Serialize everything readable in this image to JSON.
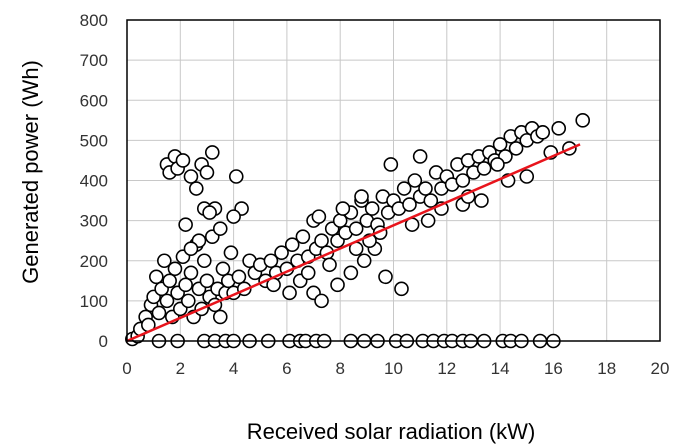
{
  "chart_data": {
    "type": "scatter",
    "xlabel": "Received solar radiation (kW)",
    "ylabel": "Generated power (Wh)",
    "xlim": [
      0,
      20
    ],
    "ylim": [
      0,
      800
    ],
    "xticks": [
      0,
      2,
      4,
      6,
      8,
      10,
      12,
      14,
      16,
      18,
      20
    ],
    "yticks": [
      0,
      100,
      200,
      300,
      400,
      500,
      600,
      700,
      800
    ],
    "grid": true,
    "legend": "none",
    "colors": {
      "points": "#000000",
      "fit_line": "#e8141c",
      "grid": "#c8c8c8"
    },
    "series": [
      {
        "values": [
          [
            0.2,
            5
          ],
          [
            0.4,
            12
          ],
          [
            0.5,
            30
          ],
          [
            0.7,
            60
          ],
          [
            0.8,
            40
          ],
          [
            0.9,
            90
          ],
          [
            1.0,
            110
          ],
          [
            1.1,
            160
          ],
          [
            1.2,
            70
          ],
          [
            1.3,
            130
          ],
          [
            1.4,
            200
          ],
          [
            1.5,
            100
          ],
          [
            1.6,
            150
          ],
          [
            1.7,
            60
          ],
          [
            1.8,
            180
          ],
          [
            1.9,
            120
          ],
          [
            2.0,
            80
          ],
          [
            2.1,
            210
          ],
          [
            2.2,
            140
          ],
          [
            2.3,
            100
          ],
          [
            2.4,
            170
          ],
          [
            2.5,
            60
          ],
          [
            2.6,
            240
          ],
          [
            2.7,
            130
          ],
          [
            2.8,
            80
          ],
          [
            2.9,
            200
          ],
          [
            3.0,
            150
          ],
          [
            3.1,
            110
          ],
          [
            3.2,
            260
          ],
          [
            3.3,
            90
          ],
          [
            3.4,
            130
          ],
          [
            3.5,
            60
          ],
          [
            3.6,
            180
          ],
          [
            3.7,
            120
          ],
          [
            3.8,
            150
          ],
          [
            3.9,
            220
          ],
          [
            4.0,
            120
          ],
          [
            4.2,
            160
          ],
          [
            4.4,
            130
          ],
          [
            4.6,
            200
          ],
          [
            1.5,
            440
          ],
          [
            1.6,
            420
          ],
          [
            1.8,
            460
          ],
          [
            1.9,
            430
          ],
          [
            2.1,
            450
          ],
          [
            2.4,
            410
          ],
          [
            2.6,
            380
          ],
          [
            2.8,
            440
          ],
          [
            3.0,
            420
          ],
          [
            3.2,
            470
          ],
          [
            2.2,
            290
          ],
          [
            2.9,
            330
          ],
          [
            3.3,
            330
          ],
          [
            3.5,
            280
          ],
          [
            4.1,
            410
          ],
          [
            4.3,
            330
          ],
          [
            4.0,
            310
          ],
          [
            3.1,
            320
          ],
          [
            2.7,
            250
          ],
          [
            2.4,
            230
          ],
          [
            4.8,
            170
          ],
          [
            5.0,
            190
          ],
          [
            5.2,
            150
          ],
          [
            5.4,
            200
          ],
          [
            5.6,
            170
          ],
          [
            5.8,
            220
          ],
          [
            6.0,
            180
          ],
          [
            6.2,
            240
          ],
          [
            6.4,
            200
          ],
          [
            6.6,
            260
          ],
          [
            6.8,
            210
          ],
          [
            7.0,
            300
          ],
          [
            7.1,
            230
          ],
          [
            7.3,
            250
          ],
          [
            7.5,
            220
          ],
          [
            7.7,
            280
          ],
          [
            7.9,
            250
          ],
          [
            8.0,
            300
          ],
          [
            8.2,
            270
          ],
          [
            8.4,
            320
          ],
          [
            8.6,
            280
          ],
          [
            8.8,
            350
          ],
          [
            9.0,
            300
          ],
          [
            9.2,
            330
          ],
          [
            9.4,
            290
          ],
          [
            9.6,
            360
          ],
          [
            9.8,
            320
          ],
          [
            10.0,
            350
          ],
          [
            10.2,
            330
          ],
          [
            10.4,
            380
          ],
          [
            10.6,
            340
          ],
          [
            10.8,
            400
          ],
          [
            11.0,
            360
          ],
          [
            11.2,
            380
          ],
          [
            11.4,
            350
          ],
          [
            11.6,
            420
          ],
          [
            11.8,
            380
          ],
          [
            12.0,
            410
          ],
          [
            12.2,
            390
          ],
          [
            12.4,
            440
          ],
          [
            12.6,
            400
          ],
          [
            12.8,
            450
          ],
          [
            13.0,
            420
          ],
          [
            13.2,
            460
          ],
          [
            13.4,
            430
          ],
          [
            13.6,
            470
          ],
          [
            13.8,
            450
          ],
          [
            14.0,
            490
          ],
          [
            14.2,
            460
          ],
          [
            14.4,
            510
          ],
          [
            14.6,
            480
          ],
          [
            14.8,
            520
          ],
          [
            15.0,
            500
          ],
          [
            15.2,
            530
          ],
          [
            15.4,
            510
          ],
          [
            15.6,
            520
          ],
          [
            15.9,
            470
          ],
          [
            16.2,
            530
          ],
          [
            16.6,
            480
          ],
          [
            17.1,
            550
          ],
          [
            6.5,
            150
          ],
          [
            7.0,
            120
          ],
          [
            7.3,
            100
          ],
          [
            7.9,
            140
          ],
          [
            8.4,
            170
          ],
          [
            8.9,
            200
          ],
          [
            9.3,
            230
          ],
          [
            9.7,
            160
          ],
          [
            10.3,
            130
          ],
          [
            7.2,
            310
          ],
          [
            8.1,
            330
          ],
          [
            8.8,
            360
          ],
          [
            9.5,
            270
          ],
          [
            9.9,
            440
          ],
          [
            11.0,
            460
          ],
          [
            11.3,
            300
          ],
          [
            12.6,
            340
          ],
          [
            13.3,
            350
          ],
          [
            14.3,
            400
          ],
          [
            15.0,
            410
          ],
          [
            5.5,
            140
          ],
          [
            6.1,
            120
          ],
          [
            6.8,
            170
          ],
          [
            7.6,
            190
          ],
          [
            8.6,
            230
          ],
          [
            9.1,
            250
          ],
          [
            10.7,
            290
          ],
          [
            11.8,
            330
          ],
          [
            12.8,
            360
          ],
          [
            13.9,
            440
          ],
          [
            1.2,
            0
          ],
          [
            1.9,
            0
          ],
          [
            2.9,
            0
          ],
          [
            3.3,
            0
          ],
          [
            3.7,
            0
          ],
          [
            4.0,
            0
          ],
          [
            4.6,
            0
          ],
          [
            5.3,
            0
          ],
          [
            6.1,
            0
          ],
          [
            6.5,
            0
          ],
          [
            6.7,
            0
          ],
          [
            7.1,
            0
          ],
          [
            7.4,
            0
          ],
          [
            8.4,
            0
          ],
          [
            8.9,
            0
          ],
          [
            9.4,
            0
          ],
          [
            10.1,
            0
          ],
          [
            10.5,
            0
          ],
          [
            11.1,
            0
          ],
          [
            11.5,
            0
          ],
          [
            11.9,
            0
          ],
          [
            12.2,
            0
          ],
          [
            12.6,
            0
          ],
          [
            12.9,
            0
          ],
          [
            13.4,
            0
          ],
          [
            14.1,
            0
          ],
          [
            14.4,
            0
          ],
          [
            14.8,
            0
          ],
          [
            15.5,
            0
          ],
          [
            16.0,
            0
          ]
        ]
      }
    ],
    "fit_line": {
      "x": [
        0,
        17
      ],
      "y": [
        0,
        490
      ]
    }
  }
}
